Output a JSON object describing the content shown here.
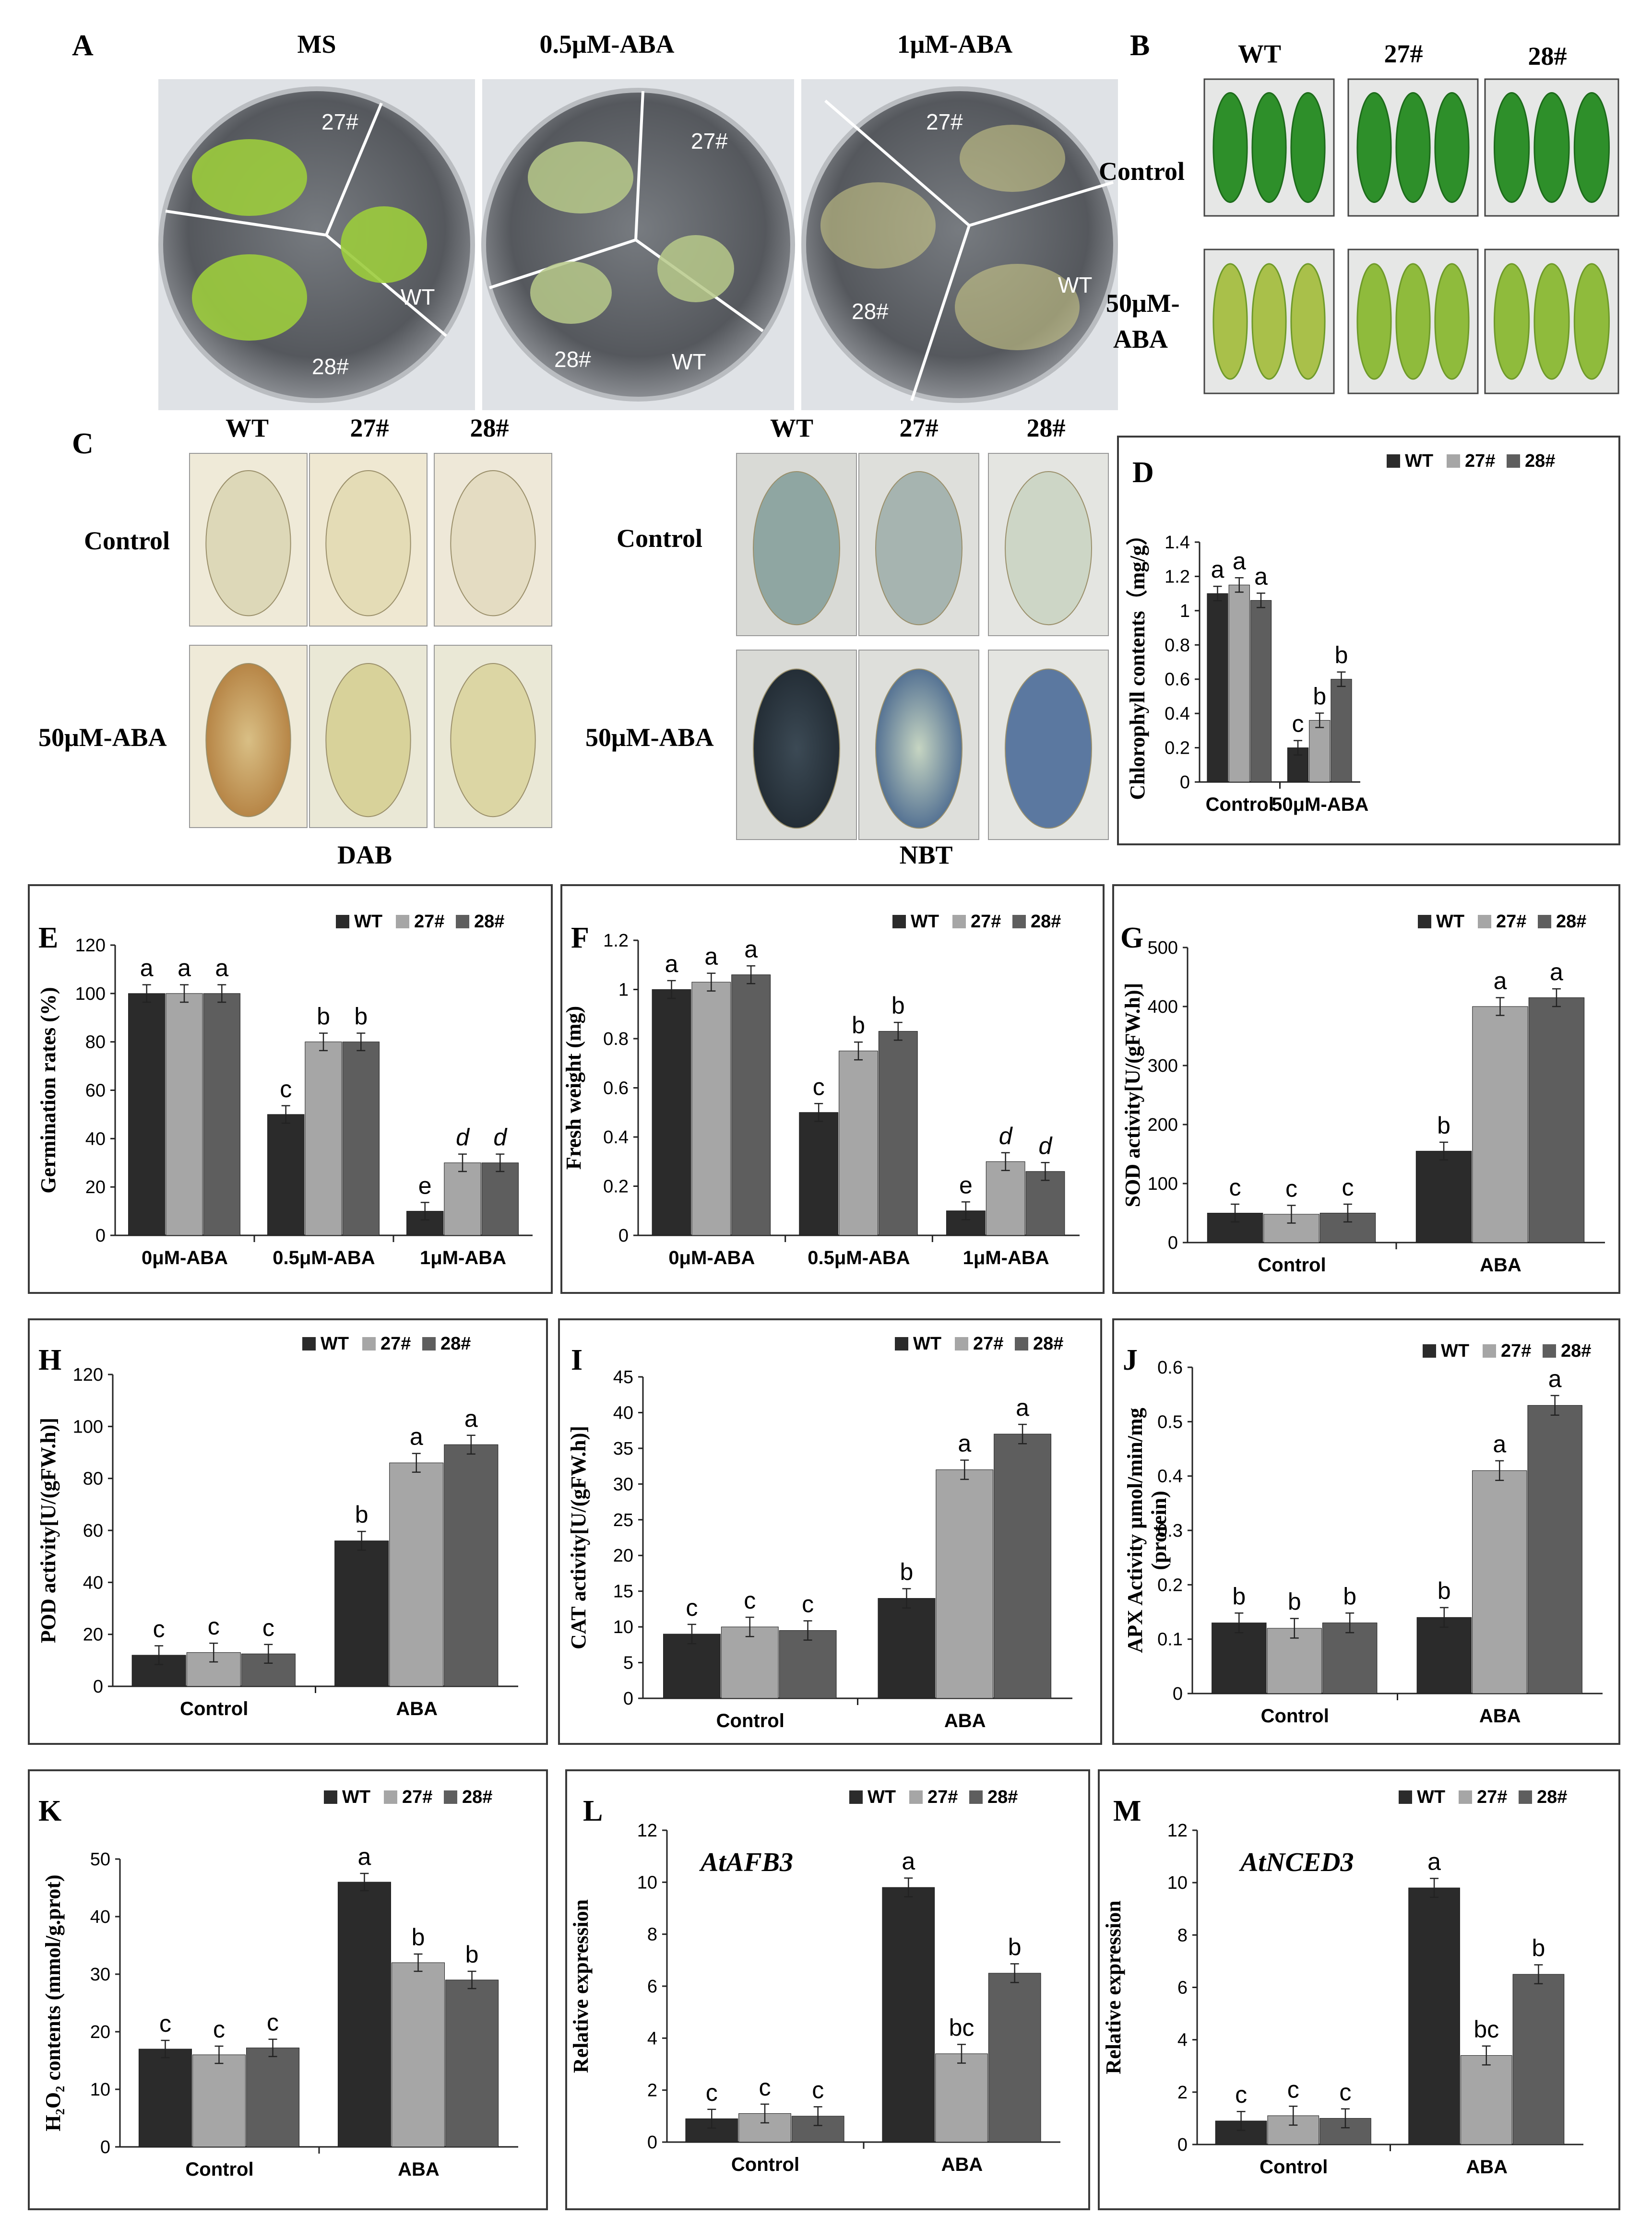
{
  "colors": {
    "wt": "#2b2b2b",
    "l27": "#a6a6a6",
    "l28": "#5e5e5e",
    "plate_bg": "#5a5d62",
    "leaf_green": "#2f8a2a"
  },
  "legend": [
    "WT",
    "27#",
    "28#"
  ],
  "panelA": {
    "letter": "A",
    "titles": [
      "MS",
      "0.5μM-ABA",
      "1μM-ABA"
    ],
    "labels": [
      "27#",
      "WT",
      "28#"
    ]
  },
  "panelB": {
    "letter": "B",
    "cols": [
      "WT",
      "27#",
      "28#"
    ],
    "rows": [
      "Control",
      "50μM-",
      "ABA"
    ]
  },
  "panelC": {
    "letter": "C",
    "cols": [
      "WT",
      "27#",
      "28#"
    ],
    "rows": [
      "Control",
      "50μM-ABA"
    ],
    "stains": [
      "DAB",
      "NBT"
    ]
  },
  "chart_data": [
    {
      "panel": "D",
      "type": "bar",
      "ylabel": "Chlorophyll contents（mg/g）",
      "categories": [
        "Control",
        "50μM-ABA"
      ],
      "ylim": [
        0,
        1.4
      ],
      "yticks": [
        "0",
        "0.2",
        "0.4",
        "0.6",
        "0.8",
        "1",
        "1.2",
        "1.4"
      ],
      "series": [
        {
          "name": "WT",
          "values": [
            1.1,
            0.2
          ]
        },
        {
          "name": "27#",
          "values": [
            1.15,
            0.36
          ]
        },
        {
          "name": "28#",
          "values": [
            1.06,
            0.6
          ]
        }
      ],
      "letters": [
        [
          "a",
          "a",
          "a"
        ],
        [
          "c",
          "b",
          "b"
        ]
      ]
    },
    {
      "panel": "E",
      "type": "bar",
      "ylabel": "Germination rates (%)",
      "categories": [
        "0μM-ABA",
        "0.5μM-ABA",
        "1μM-ABA"
      ],
      "ylim": [
        0,
        120
      ],
      "yticks": [
        "0",
        "20",
        "40",
        "60",
        "80",
        "100",
        "120"
      ],
      "series": [
        {
          "name": "WT",
          "values": [
            100,
            50,
            10
          ]
        },
        {
          "name": "27#",
          "values": [
            100,
            80,
            30
          ]
        },
        {
          "name": "28#",
          "values": [
            100,
            80,
            30
          ]
        }
      ],
      "letters": [
        [
          "a",
          "a",
          "a"
        ],
        [
          "c",
          "b",
          "b"
        ],
        [
          "e",
          "d",
          "d"
        ]
      ]
    },
    {
      "panel": "F",
      "type": "bar",
      "ylabel": "Fresh weight (mg)",
      "categories": [
        "0μM-ABA",
        "0.5μM-ABA",
        "1μM-ABA"
      ],
      "ylim": [
        0,
        1.2
      ],
      "yticks": [
        "0",
        "0.2",
        "0.4",
        "0.6",
        "0.8",
        "1",
        "1.2"
      ],
      "series": [
        {
          "name": "WT",
          "values": [
            1.0,
            0.5,
            0.1
          ]
        },
        {
          "name": "27#",
          "values": [
            1.03,
            0.75,
            0.3
          ]
        },
        {
          "name": "28#",
          "values": [
            1.06,
            0.83,
            0.26
          ]
        }
      ],
      "letters": [
        [
          "a",
          "a",
          "a"
        ],
        [
          "c",
          "b",
          "b"
        ],
        [
          "e",
          "d",
          "d"
        ]
      ]
    },
    {
      "panel": "G",
      "type": "bar",
      "ylabel": "SOD activity[U/(gFW.h)]",
      "categories": [
        "Control",
        "ABA"
      ],
      "ylim": [
        0,
        500
      ],
      "yticks": [
        "0",
        "100",
        "200",
        "300",
        "400",
        "500"
      ],
      "series": [
        {
          "name": "WT",
          "values": [
            50,
            155
          ]
        },
        {
          "name": "27#",
          "values": [
            48,
            400
          ]
        },
        {
          "name": "28#",
          "values": [
            50,
            415
          ]
        }
      ],
      "letters": [
        [
          "c",
          "c",
          "c"
        ],
        [
          "b",
          "a",
          "a"
        ]
      ]
    },
    {
      "panel": "H",
      "type": "bar",
      "ylabel": "POD activity[U/(gFW.h)]",
      "categories": [
        "Control",
        "ABA"
      ],
      "ylim": [
        0,
        120
      ],
      "yticks": [
        "0",
        "20",
        "40",
        "60",
        "80",
        "100",
        "120"
      ],
      "series": [
        {
          "name": "WT",
          "values": [
            12,
            56
          ]
        },
        {
          "name": "27#",
          "values": [
            13,
            86
          ]
        },
        {
          "name": "28#",
          "values": [
            12.5,
            93
          ]
        }
      ],
      "letters": [
        [
          "c",
          "c",
          "c"
        ],
        [
          "b",
          "a",
          "a"
        ]
      ]
    },
    {
      "panel": "I",
      "type": "bar",
      "ylabel": "CAT activity[U/(gFW.h)]",
      "categories": [
        "Control",
        "ABA"
      ],
      "ylim": [
        0,
        45
      ],
      "yticks": [
        "0",
        "5",
        "10",
        "15",
        "20",
        "25",
        "30",
        "35",
        "40",
        "45"
      ],
      "series": [
        {
          "name": "WT",
          "values": [
            9,
            14
          ]
        },
        {
          "name": "27#",
          "values": [
            10,
            32
          ]
        },
        {
          "name": "28#",
          "values": [
            9.5,
            37
          ]
        }
      ],
      "letters": [
        [
          "c",
          "c",
          "c"
        ],
        [
          "b",
          "a",
          "a"
        ]
      ]
    },
    {
      "panel": "J",
      "type": "bar",
      "ylabel": "APX Activity μmol/min/mg",
      "ylabel2": "(protein)",
      "categories": [
        "Control",
        "ABA"
      ],
      "ylim": [
        0,
        0.6
      ],
      "yticks": [
        "0",
        "0.1",
        "0.2",
        "0.3",
        "0.4",
        "0.5",
        "0.6"
      ],
      "series": [
        {
          "name": "WT",
          "values": [
            0.13,
            0.14
          ]
        },
        {
          "name": "27#",
          "values": [
            0.12,
            0.41
          ]
        },
        {
          "name": "28#",
          "values": [
            0.13,
            0.53
          ]
        }
      ],
      "letters": [
        [
          "b",
          "b",
          "b"
        ],
        [
          "b",
          "a",
          "a"
        ]
      ]
    },
    {
      "panel": "K",
      "type": "bar",
      "ylabel": "H₂O₂ contents (mmol/g.prot)",
      "categories": [
        "Control",
        "ABA"
      ],
      "ylim": [
        0,
        50
      ],
      "yticks": [
        "0",
        "10",
        "20",
        "30",
        "40",
        "50"
      ],
      "series": [
        {
          "name": "WT",
          "values": [
            17,
            46
          ]
        },
        {
          "name": "27#",
          "values": [
            16,
            32
          ]
        },
        {
          "name": "28#",
          "values": [
            17.2,
            29
          ]
        }
      ],
      "letters": [
        [
          "c",
          "c",
          "c"
        ],
        [
          "a",
          "b",
          "b"
        ]
      ]
    },
    {
      "panel": "L",
      "type": "bar",
      "gene": "AtAFB3",
      "ylabel": "Relative expression",
      "categories": [
        "Control",
        "ABA"
      ],
      "ylim": [
        0,
        12
      ],
      "yticks": [
        "0",
        "2",
        "4",
        "6",
        "8",
        "10",
        "12"
      ],
      "series": [
        {
          "name": "WT",
          "values": [
            0.9,
            9.8
          ]
        },
        {
          "name": "27#",
          "values": [
            1.1,
            3.4
          ]
        },
        {
          "name": "28#",
          "values": [
            1.0,
            6.5
          ]
        }
      ],
      "letters": [
        [
          "c",
          "c",
          "c"
        ],
        [
          "a",
          "bc",
          "b"
        ]
      ]
    },
    {
      "panel": "M",
      "type": "bar",
      "gene": "AtNCED3",
      "ylabel": "Relative expression",
      "categories": [
        "Control",
        "ABA"
      ],
      "ylim": [
        0,
        12
      ],
      "yticks": [
        "0",
        "2",
        "4",
        "6",
        "8",
        "10",
        "12"
      ],
      "series": [
        {
          "name": "WT",
          "values": [
            0.9,
            9.8
          ]
        },
        {
          "name": "27#",
          "values": [
            1.1,
            3.4
          ]
        },
        {
          "name": "28#",
          "values": [
            1.0,
            6.5
          ]
        }
      ],
      "letters": [
        [
          "c",
          "c",
          "c"
        ],
        [
          "a",
          "bc",
          "b"
        ]
      ]
    }
  ]
}
